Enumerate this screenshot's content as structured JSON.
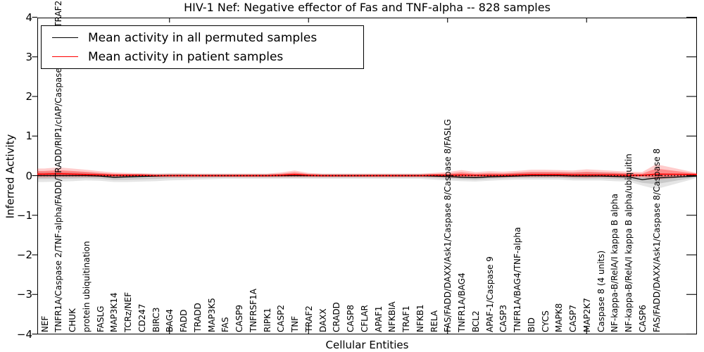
{
  "figure": {
    "title": "HIV-1 Nef: Negative effector of Fas and TNF-alpha -- 828 samples",
    "xlabel": "Cellular Entities",
    "ylabel": "Inferred Activity"
  },
  "legend": {
    "position": "upper left",
    "entries": [
      {
        "label": "Mean activity in all permuted samples",
        "color": "#000000"
      },
      {
        "label": "Mean activity in patient samples",
        "color": "#ff0000"
      }
    ]
  },
  "chart_data": {
    "type": "line",
    "title": "HIV-1 Nef: Negative effector of Fas and TNF-alpha -- 828 samples",
    "xlabel": "Cellular Entities",
    "ylabel": "Inferred Activity",
    "ylim": [
      -4,
      4
    ],
    "yticks": [
      4,
      3,
      2,
      1,
      0,
      -1,
      -2,
      -3,
      -4
    ],
    "ytick_labels": [
      "4",
      "3",
      "2",
      "1",
      "0",
      "−1",
      "−2",
      "−3",
      "−4"
    ],
    "x_major_tick_values": [
      10,
      20,
      30,
      40
    ],
    "grid": false,
    "zero_line": {
      "y": 0,
      "style": "dotted",
      "color": "#000000"
    },
    "legend_position": "upper left",
    "categories": [
      "NEF",
      "TNFR1A/Caspase 2/TNF-alpha/FADD/TRADD/RIP1/cIAP/Caspase 8/TRAF1/TRAF2",
      "CHUK",
      "protein ubiquitination",
      "FASLG",
      "MAP3K14",
      "TCRz/NEF",
      "CD247",
      "BIRC3",
      "BAG4",
      "FADD",
      "TRADD",
      "MAP3K5",
      "FAS",
      "CASP9",
      "TNFRSF1A",
      "RIPK1",
      "CASP2",
      "TNF",
      "TRAF2",
      "DAXX",
      "CRADD",
      "CASP8",
      "CFLAR",
      "APAF1",
      "NFKBIA",
      "TRAF1",
      "NFKB1",
      "RELA",
      "FAS/FADD/DAXX/Ask1/Caspase 8/Caspase 8/FASLG",
      "TNFR1A/BAG4",
      "BCL2",
      "APAF-1/Caspase 9",
      "CASP3",
      "TNFR1A/BAG4/TNF-alpha",
      "BID",
      "CYCS",
      "MAPK8",
      "CASP7",
      "MAP2K7",
      "Caspase 8 (4 units)",
      "NF-kappa-B/RelA/I kappa B alpha",
      "NF-kappa-B/RelA/I kappa B alpha/ubiquitin",
      "CASP6",
      "FAS/FADD/DAXX/Ask1/Caspase 8/Caspase 8"
    ],
    "series": [
      {
        "name": "Mean activity in all permuted samples",
        "color": "#000000",
        "line_width": 1.3,
        "band_colors": [
          "rgba(0,0,0,0.10)",
          "rgba(0,0,0,0.12)"
        ],
        "values": [
          0,
          0,
          0,
          0,
          -0.01,
          -0.04,
          -0.03,
          -0.02,
          -0.01,
          0,
          0,
          0,
          0,
          0,
          0,
          0,
          0,
          0,
          0,
          0,
          0,
          0,
          0,
          0,
          0,
          0,
          0,
          0,
          -0.01,
          -0.02,
          -0.04,
          -0.05,
          -0.03,
          -0.02,
          -0.01,
          0,
          0,
          0,
          -0.01,
          -0.01,
          -0.01,
          -0.02,
          -0.03,
          -0.1,
          -0.06
        ],
        "band_upper": [
          0.1,
          0.1,
          0.09,
          0.08,
          0.07,
          0.07,
          0.07,
          0.07,
          0.06,
          0.06,
          0.06,
          0.05,
          0.05,
          0.05,
          0.05,
          0.05,
          0.05,
          0.05,
          0.05,
          0.05,
          0.05,
          0.05,
          0.05,
          0.05,
          0.05,
          0.05,
          0.05,
          0.05,
          0.06,
          0.06,
          0.07,
          0.07,
          0.07,
          0.07,
          0.08,
          0.08,
          0.08,
          0.08,
          0.09,
          0.09,
          0.09,
          0.09,
          0.09,
          0.1,
          0.1
        ],
        "band_lower": [
          0.16,
          0.15,
          0.14,
          0.12,
          0.12,
          0.12,
          0.13,
          0.13,
          0.13,
          0.12,
          0.11,
          0.1,
          0.09,
          0.08,
          0.08,
          0.08,
          0.08,
          0.08,
          0.08,
          0.08,
          0.08,
          0.08,
          0.08,
          0.08,
          0.08,
          0.08,
          0.08,
          0.08,
          0.09,
          0.1,
          0.1,
          0.1,
          0.1,
          0.09,
          0.09,
          0.1,
          0.1,
          0.1,
          0.11,
          0.11,
          0.11,
          0.12,
          0.12,
          0.15,
          0.28
        ],
        "right_edge": {
          "value": -0.01,
          "upper": 0.05,
          "lower": 0.05
        }
      },
      {
        "name": "Mean activity in patient samples",
        "color": "#ff0000",
        "line_width": 1.6,
        "band_colors": [
          "rgba(255,0,0,0.20)",
          "rgba(255,0,0,0.32)"
        ],
        "values": [
          0.04,
          0.05,
          0.04,
          0.03,
          0.02,
          0.01,
          0.01,
          0.01,
          0,
          0,
          0,
          0,
          0,
          0,
          0,
          0,
          0,
          0.01,
          0.03,
          0.01,
          0,
          0,
          0,
          0,
          0,
          0,
          0,
          0,
          0.01,
          0.01,
          0.02,
          0.01,
          0.01,
          0.01,
          0.02,
          0.03,
          0.03,
          0.03,
          0.02,
          0.02,
          0.02,
          0.02,
          0.01,
          0.01,
          0.04
        ],
        "band_upper": [
          0.14,
          0.16,
          0.14,
          0.12,
          0.09,
          0.07,
          0.06,
          0.05,
          0.05,
          0.05,
          0.05,
          0.05,
          0.05,
          0.05,
          0.05,
          0.05,
          0.05,
          0.07,
          0.1,
          0.06,
          0.05,
          0.05,
          0.05,
          0.05,
          0.05,
          0.05,
          0.05,
          0.05,
          0.06,
          0.08,
          0.12,
          0.08,
          0.1,
          0.09,
          0.1,
          0.12,
          0.12,
          0.11,
          0.11,
          0.14,
          0.12,
          0.1,
          0.09,
          0.08,
          0.25
        ],
        "band_lower": [
          0.09,
          0.09,
          0.08,
          0.07,
          0.06,
          0.05,
          0.04,
          0.04,
          0.04,
          0.04,
          0.04,
          0.04,
          0.04,
          0.04,
          0.04,
          0.04,
          0.04,
          0.05,
          0.07,
          0.05,
          0.04,
          0.04,
          0.04,
          0.04,
          0.04,
          0.04,
          0.04,
          0.04,
          0.05,
          0.06,
          0.08,
          0.06,
          0.06,
          0.06,
          0.06,
          0.07,
          0.07,
          0.07,
          0.07,
          0.08,
          0.07,
          0.07,
          0.06,
          0.06,
          0.14
        ],
        "right_edge": {
          "value": 0.03,
          "upper": 0.04,
          "lower": 0.04
        }
      }
    ]
  }
}
